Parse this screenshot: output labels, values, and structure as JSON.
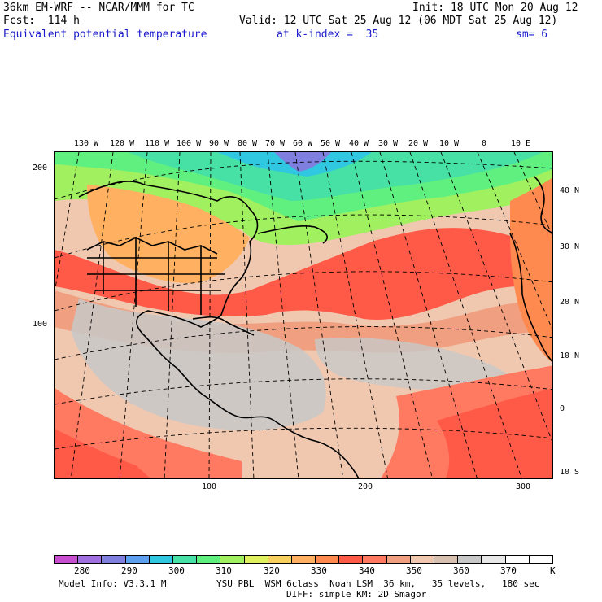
{
  "header": {
    "model": "36km EM-WRF -- NCAR/MMM for TC",
    "init": "Init: 18 UTC Mon 20 Aug 12",
    "fcst": "Fcst:  114 h",
    "valid": "Valid: 12 UTC Sat 25 Aug 12 (06 MDT Sat 25 Aug 12)",
    "field": "Equivalent potential temperature",
    "level": "at k-index =  35",
    "smooth": "sm= 6"
  },
  "map": {
    "top_lon_labels": [
      "130 W",
      "120 W",
      "110 W",
      "100 W",
      "90 W",
      "80 W",
      "70 W",
      "60 W",
      "50 W",
      "40 W",
      "30 W",
      "20 W",
      "10 W",
      "0",
      "10 E"
    ],
    "right_lat_labels": [
      "40 N",
      "30 N",
      "20 N",
      "10 N",
      "0",
      "10 S"
    ],
    "left_grid_labels": [
      "200",
      "100"
    ],
    "bottom_grid_labels": [
      "100",
      "200",
      "300"
    ],
    "fill_colors": {
      "high_latitude": "#47e0a5",
      "cold_pool": "#7f7fe0",
      "mid_latitude": "#a0f060",
      "warm_band": "#ff5a47",
      "tropics": "#f0c8b0",
      "deep_tropics": "#c8c8c8",
      "land_warm": "#e06040"
    }
  },
  "colorbar": {
    "colors": [
      "#c84fd0",
      "#a070e0",
      "#7f7fe0",
      "#5f9ff0",
      "#30c8e0",
      "#47e0a5",
      "#60f080",
      "#a0f060",
      "#e0f060",
      "#f8d060",
      "#ffb060",
      "#ff8a50",
      "#ff5a47",
      "#ff7a60",
      "#f09f80",
      "#f0c8b0",
      "#d8c0b0",
      "#c8c8c8",
      "#e8e8e8",
      "#ffffff",
      "#ffffff"
    ],
    "tick_labels": [
      "280",
      "290",
      "300",
      "310",
      "320",
      "330",
      "340",
      "350",
      "360",
      "370"
    ],
    "unit": "K"
  },
  "footer": {
    "model_info": "Model Info: V3.3.1 M",
    "physics": "YSU PBL  WSM 6class  Noah LSM  36 km,   35 levels,   180 sec",
    "diffusion": "DIFF: simple KM: 2D Smagor"
  }
}
